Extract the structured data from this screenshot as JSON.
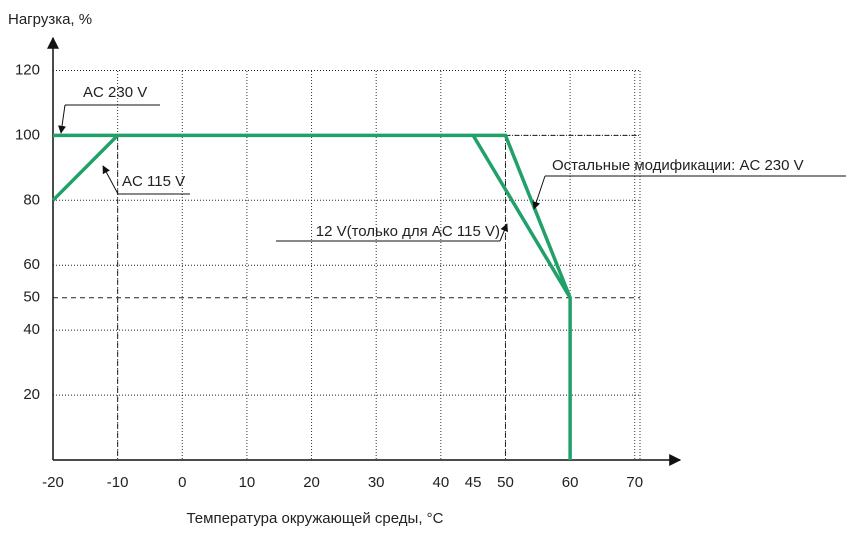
{
  "chart_data": {
    "type": "line",
    "ylabel": "Нагрузка, %",
    "xlabel": "Температура окружающей среды, °C",
    "xlim": [
      -20,
      77
    ],
    "ylim": [
      0,
      130
    ],
    "xticks": [
      -20,
      -10,
      0,
      10,
      20,
      30,
      40,
      45,
      50,
      60,
      70
    ],
    "yticks": [
      20,
      40,
      50,
      60,
      80,
      100,
      120
    ],
    "grid": true,
    "series": [
      {
        "color": "#21a06a",
        "x": [
          -20,
          50,
          60,
          60
        ],
        "values": [
          100,
          100,
          50,
          0
        ]
      },
      {
        "color": "#21a06a",
        "x": [
          -20,
          -10
        ],
        "values": [
          80,
          100
        ]
      },
      {
        "color": "#21a06a",
        "x": [
          45,
          60
        ],
        "values": [
          100,
          50
        ]
      }
    ],
    "annotations": [
      "AC 230 V",
      "AC 115 V",
      "12 V(только для AC 115 V)",
      "Остальные модификации: AC 230 V"
    ]
  }
}
